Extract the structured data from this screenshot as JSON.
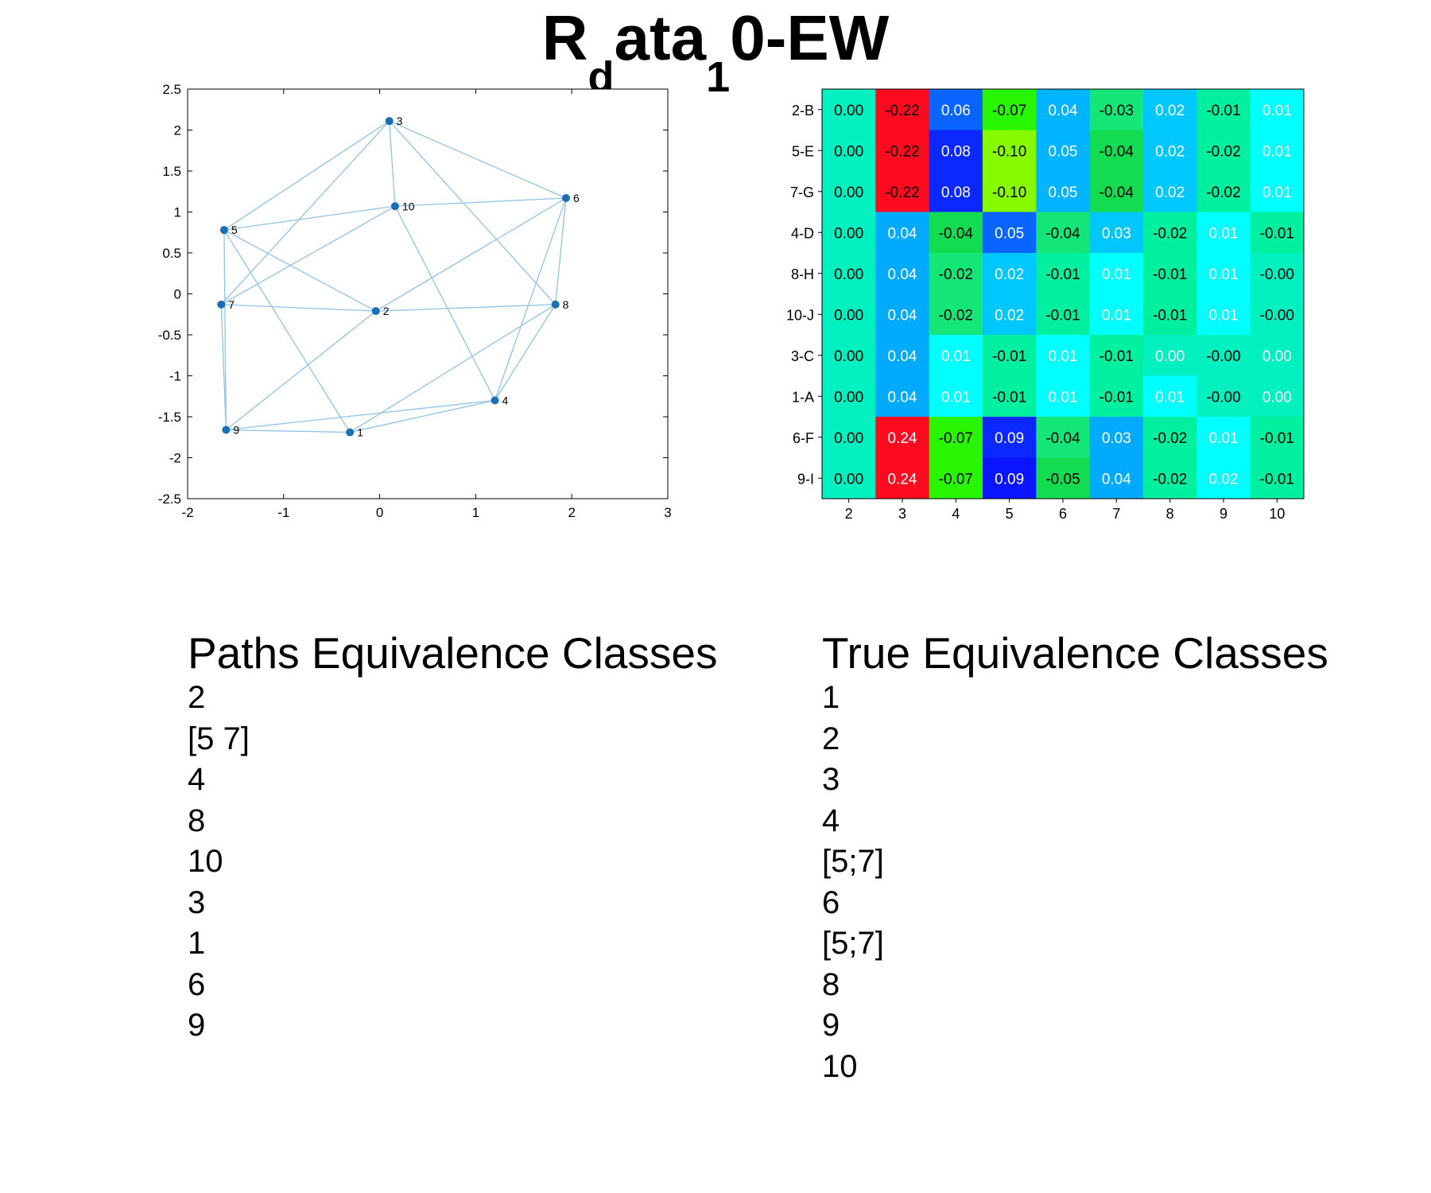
{
  "title": {
    "base": "R",
    "sub1": "d",
    "mid": "ata",
    "sub2": "1",
    "tail": "0-EW"
  },
  "colors": {
    "edge": "#8fc3e8",
    "node": "#1a6fb5",
    "axis": "#000000"
  },
  "chart_data": [
    {
      "type": "scatter",
      "subtype": "graph",
      "xlim": [
        -2,
        3
      ],
      "ylim": [
        -2.5,
        2.5
      ],
      "xticks": [
        "-2",
        "-1",
        "0",
        "1",
        "2",
        "3"
      ],
      "yticks": [
        "2.5",
        "2",
        "1.5",
        "1",
        "0.5",
        "0",
        "-0.5",
        "-1",
        "-1.5",
        "-2",
        "-2.5"
      ],
      "nodes": [
        {
          "label": "1",
          "x": -0.31,
          "y": -1.69
        },
        {
          "label": "2",
          "x": -0.04,
          "y": -0.21
        },
        {
          "label": "3",
          "x": 0.1,
          "y": 2.11
        },
        {
          "label": "4",
          "x": 1.2,
          "y": -1.3
        },
        {
          "label": "5",
          "x": -1.62,
          "y": 0.78
        },
        {
          "label": "6",
          "x": 1.94,
          "y": 1.17
        },
        {
          "label": "7",
          "x": -1.65,
          "y": -0.13
        },
        {
          "label": "8",
          "x": 1.83,
          "y": -0.13
        },
        {
          "label": "9",
          "x": -1.6,
          "y": -1.66
        },
        {
          "label": "10",
          "x": 0.16,
          "y": 1.07
        }
      ],
      "edges": [
        [
          "3",
          "5"
        ],
        [
          "3",
          "7"
        ],
        [
          "3",
          "10"
        ],
        [
          "3",
          "8"
        ],
        [
          "3",
          "6"
        ],
        [
          "5",
          "10"
        ],
        [
          "5",
          "2"
        ],
        [
          "5",
          "1"
        ],
        [
          "5",
          "9"
        ],
        [
          "10",
          "6"
        ],
        [
          "10",
          "7"
        ],
        [
          "10",
          "4"
        ],
        [
          "6",
          "2"
        ],
        [
          "6",
          "8"
        ],
        [
          "6",
          "4"
        ],
        [
          "7",
          "2"
        ],
        [
          "7",
          "9"
        ],
        [
          "2",
          "8"
        ],
        [
          "2",
          "9"
        ],
        [
          "8",
          "4"
        ],
        [
          "8",
          "1"
        ],
        [
          "9",
          "1"
        ],
        [
          "9",
          "4"
        ],
        [
          "1",
          "4"
        ]
      ]
    },
    {
      "type": "heatmap",
      "columns": [
        "2",
        "3",
        "4",
        "5",
        "6",
        "7",
        "8",
        "9",
        "10"
      ],
      "rows": [
        "2-B",
        "5-E",
        "7-G",
        "4-D",
        "8-H",
        "10-J",
        "3-C",
        "1-A",
        "6-F",
        "9-I"
      ],
      "cells": [
        [
          "0.00",
          "-0.22",
          "0.06",
          "-0.07",
          "0.04",
          "-0.03",
          "0.02",
          "-0.01",
          "0.01"
        ],
        [
          "0.00",
          "-0.22",
          "0.08",
          "-0.10",
          "0.05",
          "-0.04",
          "0.02",
          "-0.02",
          "0.01"
        ],
        [
          "0.00",
          "-0.22",
          "0.08",
          "-0.10",
          "0.05",
          "-0.04",
          "0.02",
          "-0.02",
          "0.01"
        ],
        [
          "0.00",
          "0.04",
          "-0.04",
          "0.05",
          "-0.04",
          "0.03",
          "-0.02",
          "0.01",
          "-0.01"
        ],
        [
          "0.00",
          "0.04",
          "-0.02",
          "0.02",
          "-0.01",
          "0.01",
          "-0.01",
          "0.01",
          "-0.00"
        ],
        [
          "0.00",
          "0.04",
          "-0.02",
          "0.02",
          "-0.01",
          "0.01",
          "-0.01",
          "0.01",
          "-0.00"
        ],
        [
          "0.00",
          "0.04",
          "0.01",
          "-0.01",
          "0.01",
          "-0.01",
          "0.00",
          "-0.00",
          "0.00"
        ],
        [
          "0.00",
          "0.04",
          "0.01",
          "-0.01",
          "0.01",
          "-0.01",
          "0.01",
          "-0.00",
          "0.00"
        ],
        [
          "0.00",
          "0.24",
          "-0.07",
          "0.09",
          "-0.04",
          "0.03",
          "-0.02",
          "0.01",
          "-0.01"
        ],
        [
          "0.00",
          "0.24",
          "-0.07",
          "0.09",
          "-0.05",
          "0.04",
          "-0.02",
          "0.02",
          "-0.01"
        ]
      ],
      "cell_colors": [
        [
          "#00f0c0",
          "#ff0a1e",
          "#0a64ff",
          "#28f500",
          "#00b4ff",
          "#14e678",
          "#00c8ff",
          "#00f0a0",
          "#00ffff"
        ],
        [
          "#00f0c0",
          "#ff0a1e",
          "#0a28ff",
          "#88fa00",
          "#00b4ff",
          "#14dc50",
          "#00c8ff",
          "#00f0a0",
          "#00ffff"
        ],
        [
          "#00f0c0",
          "#ff0a1e",
          "#0a28ff",
          "#88fa00",
          "#00b4ff",
          "#14dc50",
          "#00c8ff",
          "#00f0a0",
          "#00ffff"
        ],
        [
          "#00f0c0",
          "#00aaff",
          "#14dc50",
          "#0a64ff",
          "#14e678",
          "#00c8ff",
          "#00f0a0",
          "#00ffff",
          "#00f0a0"
        ],
        [
          "#00f0c0",
          "#00aaff",
          "#14e678",
          "#00c8ff",
          "#00f0a0",
          "#00ffff",
          "#00f0a0",
          "#00ffff",
          "#00f0c0"
        ],
        [
          "#00f0c0",
          "#00aaff",
          "#14e678",
          "#00c8ff",
          "#00f0a0",
          "#00ffff",
          "#00f0a0",
          "#00ffff",
          "#00f0c0"
        ],
        [
          "#00f0c0",
          "#00aaff",
          "#00ffff",
          "#00f0a0",
          "#00ffff",
          "#00f0a0",
          "#00f0c0",
          "#00f0c0",
          "#00f0c0"
        ],
        [
          "#00f0c0",
          "#00aaff",
          "#00ffff",
          "#00f0a0",
          "#00ffff",
          "#00f0a0",
          "#00ffff",
          "#00f0c0",
          "#00f0c0"
        ],
        [
          "#00f0c0",
          "#ff0a1e",
          "#28f500",
          "#0a28ff",
          "#14e678",
          "#00aaff",
          "#00f0a0",
          "#00ffff",
          "#00f0a0"
        ],
        [
          "#00f0c0",
          "#ff0a1e",
          "#28f500",
          "#0a14ff",
          "#14dc50",
          "#00aaff",
          "#00f0a0",
          "#00ffff",
          "#00f0a0"
        ]
      ],
      "text_white": [
        [
          false,
          false,
          true,
          false,
          true,
          false,
          true,
          false,
          true
        ],
        [
          false,
          false,
          true,
          false,
          true,
          false,
          true,
          false,
          true
        ],
        [
          false,
          false,
          true,
          false,
          true,
          false,
          true,
          false,
          true
        ],
        [
          false,
          true,
          false,
          true,
          false,
          true,
          false,
          true,
          false
        ],
        [
          false,
          true,
          false,
          true,
          false,
          true,
          false,
          true,
          false
        ],
        [
          false,
          true,
          false,
          true,
          false,
          true,
          false,
          true,
          false
        ],
        [
          false,
          true,
          true,
          false,
          true,
          false,
          true,
          false,
          true
        ],
        [
          false,
          true,
          true,
          false,
          true,
          false,
          true,
          false,
          true
        ],
        [
          false,
          true,
          false,
          true,
          false,
          true,
          false,
          true,
          false
        ],
        [
          false,
          true,
          false,
          true,
          false,
          true,
          false,
          true,
          false
        ]
      ]
    }
  ],
  "paths_classes": {
    "title": "Paths Equivalence Classes",
    "items": [
      "2",
      "[5 7]",
      "4",
      "8",
      "10",
      "3",
      "1",
      "6",
      "9"
    ]
  },
  "true_classes": {
    "title": "True Equivalence Classes",
    "items": [
      "1",
      "2",
      "3",
      "4",
      "[5;7]",
      "6",
      "[5;7]",
      "8",
      "9",
      "10"
    ]
  }
}
